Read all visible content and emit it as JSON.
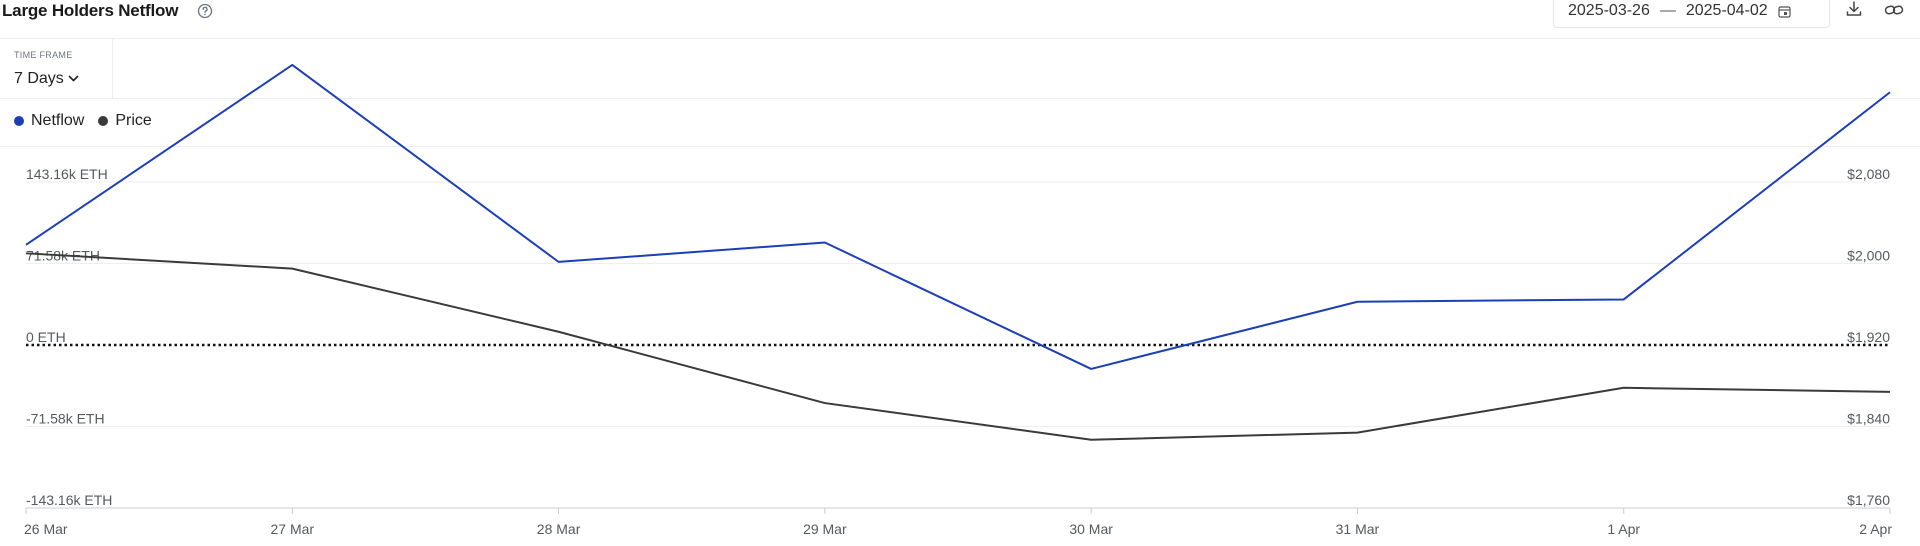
{
  "header": {
    "title": "Large Holders Netflow",
    "date_start": "2025-03-26",
    "date_sep": "—",
    "date_end": "2025-04-02"
  },
  "timeframe": {
    "label": "TIME FRAME",
    "value": "7 Days"
  },
  "icons": {
    "help": "help-circle-icon",
    "calendar": "calendar-icon",
    "download": "download-icon",
    "link": "link-icon",
    "chevron": "chevron-down-icon"
  },
  "chart_data": {
    "type": "line",
    "x": [
      "26 Mar",
      "27 Mar",
      "28 Mar",
      "29 Mar",
      "30 Mar",
      "31 Mar",
      "1 Apr",
      "2 Apr"
    ],
    "series": [
      {
        "name": "Netflow",
        "axis": "left",
        "color": "#1c3fb7",
        "values": [
          88000,
          246000,
          73000,
          90000,
          -21000,
          38000,
          40000,
          222000
        ]
      },
      {
        "name": "Price",
        "axis": "right",
        "color": "#3a3a3a",
        "values": [
          2010,
          1995,
          1933,
          1863,
          1827,
          1834,
          1878,
          1874
        ]
      }
    ],
    "y_left": {
      "ticks": [
        "143.16k ETH",
        "71.58k ETH",
        "0 ETH",
        "-71.58k ETH",
        "-143.16k ETH"
      ],
      "tick_values": [
        143160,
        71580,
        0,
        -71580,
        -143160
      ]
    },
    "y_right": {
      "ticks": [
        "$2,080",
        "$2,000",
        "$1,920",
        "$1,840",
        "$1,760"
      ],
      "tick_values": [
        2080,
        2000,
        1920,
        1840,
        1760
      ]
    },
    "zero_line": "dotted",
    "grid": true,
    "legend_position": "top-left"
  }
}
